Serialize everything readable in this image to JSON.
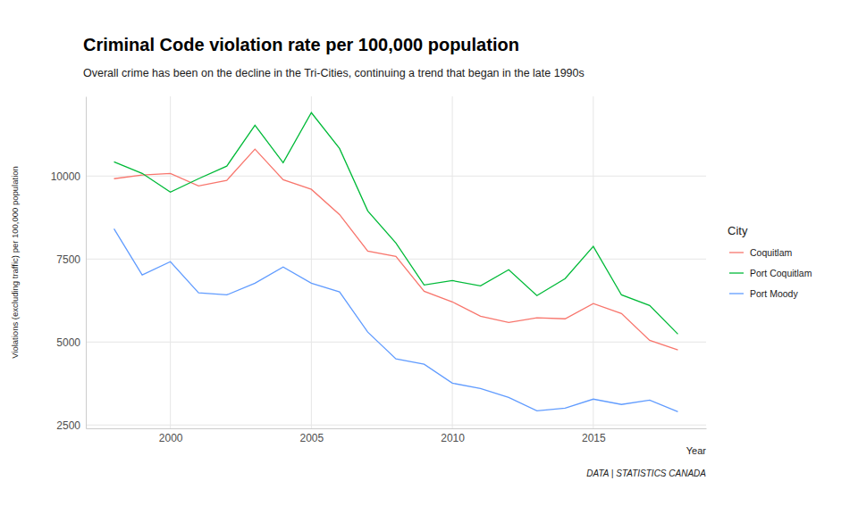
{
  "chart_data": {
    "type": "line",
    "title": "Criminal Code violation rate per 100,000 population",
    "subtitle": "Overall crime has been on the decline in the Tri-Cities, continuing a trend that began in the late 1990s",
    "x_label": "Year",
    "y_label": "Violations (excluding traffic) per 100,000 population",
    "caption": "DATA | STATISTICS CANADA",
    "legend_title": "City",
    "x": [
      1998,
      1999,
      2000,
      2001,
      2002,
      2003,
      2004,
      2005,
      2006,
      2007,
      2008,
      2009,
      2010,
      2011,
      2012,
      2013,
      2014,
      2015,
      2016,
      2017,
      2018
    ],
    "series": [
      {
        "name": "Coquitlam",
        "color": "#F8766D",
        "values": [
          9920,
          10030,
          10080,
          9700,
          9870,
          10810,
          9890,
          9600,
          8840,
          7740,
          7580,
          6530,
          6210,
          5780,
          5590,
          5730,
          5700,
          6160,
          5860,
          5050,
          4760
        ]
      },
      {
        "name": "Port Coquitlam",
        "color": "#00BA38",
        "values": [
          10430,
          10080,
          9516,
          9920,
          10300,
          11530,
          10400,
          11910,
          10830,
          8950,
          7980,
          6720,
          6850,
          6690,
          7180,
          6400,
          6910,
          7880,
          6420,
          6100,
          5240
        ]
      },
      {
        "name": "Port Moody",
        "color": "#619CFF",
        "values": [
          8410,
          7020,
          7420,
          6480,
          6420,
          6770,
          7260,
          6770,
          6510,
          5300,
          4490,
          4330,
          3760,
          3600,
          3330,
          2930,
          3010,
          3280,
          3120,
          3250,
          2900
        ]
      }
    ],
    "xlim": [
      1997,
      2019
    ],
    "xticks": [
      2000,
      2005,
      2010,
      2015
    ],
    "ylim": [
      2400,
      12400
    ],
    "yticks": [
      2500,
      5000,
      7500,
      10000
    ],
    "grid": true,
    "legend": "right"
  }
}
